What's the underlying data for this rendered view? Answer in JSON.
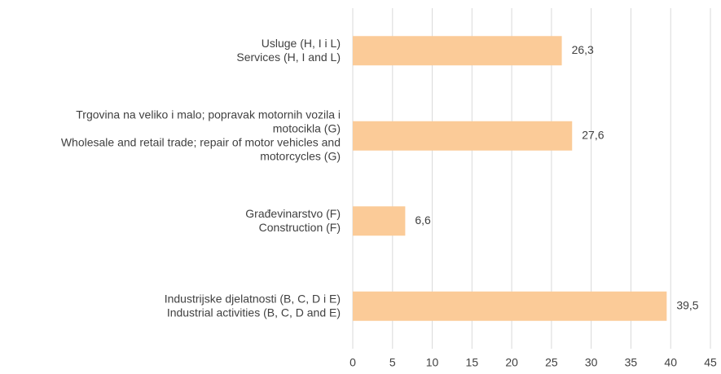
{
  "chart_data": {
    "type": "bar",
    "orientation": "horizontal",
    "categories": [
      "Usluge (H, I i L)\nServices (H, I and L)",
      "Trgovina na veliko i malo; popravak motornih vozila i\nmotocikla  (G)\nWholesale and retail trade; repair of motor vehicles and\nmotorcycles  (G)",
      "Građevinarstvo (F)\nConstruction (F)",
      "Industrijske djelatnosti (B, C, D i E)\nIndustrial activities (B, C, D and E)"
    ],
    "values": [
      26.3,
      27.6,
      6.6,
      39.5
    ],
    "value_labels": [
      "26,3",
      "27,6",
      "6,6",
      "39,5"
    ],
    "color": "#fbcb98",
    "xlim": [
      0,
      45
    ],
    "xticks": [
      0,
      5,
      10,
      15,
      20,
      25,
      30,
      35,
      40,
      45
    ],
    "grid": true
  }
}
